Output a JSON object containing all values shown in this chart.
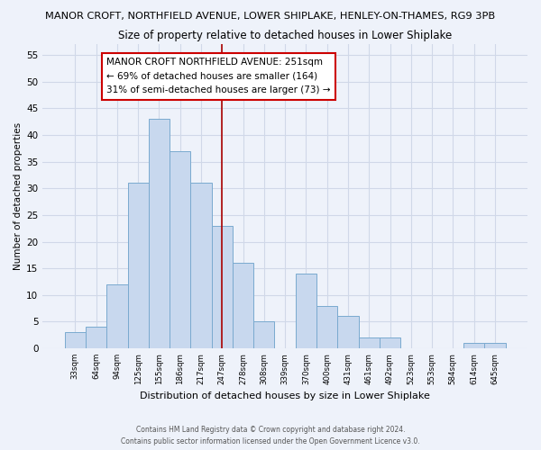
{
  "title_top": "MANOR CROFT, NORTHFIELD AVENUE, LOWER SHIPLAKE, HENLEY-ON-THAMES, RG9 3PB",
  "title_sub": "Size of property relative to detached houses in Lower Shiplake",
  "xlabel": "Distribution of detached houses by size in Lower Shiplake",
  "ylabel": "Number of detached properties",
  "categories": [
    "33sqm",
    "64sqm",
    "94sqm",
    "125sqm",
    "155sqm",
    "186sqm",
    "217sqm",
    "247sqm",
    "278sqm",
    "308sqm",
    "339sqm",
    "370sqm",
    "400sqm",
    "431sqm",
    "461sqm",
    "492sqm",
    "523sqm",
    "553sqm",
    "584sqm",
    "614sqm",
    "645sqm"
  ],
  "values": [
    3,
    4,
    12,
    31,
    43,
    37,
    31,
    23,
    16,
    5,
    0,
    14,
    8,
    6,
    2,
    2,
    0,
    0,
    0,
    1,
    1
  ],
  "bar_color": "#c8d8ee",
  "bar_edge_color": "#7aaacf",
  "vline_x_index": 7,
  "vline_color": "#aa0000",
  "ylim": [
    0,
    57
  ],
  "yticks": [
    0,
    5,
    10,
    15,
    20,
    25,
    30,
    35,
    40,
    45,
    50,
    55
  ],
  "annotation_line1": "MANOR CROFT NORTHFIELD AVENUE: 251sqm",
  "annotation_line2": "← 69% of detached houses are smaller (164)",
  "annotation_line3": "31% of semi-detached houses are larger (73) →",
  "footer1": "Contains HM Land Registry data © Crown copyright and database right 2024.",
  "footer2": "Contains public sector information licensed under the Open Government Licence v3.0.",
  "background_color": "#eef2fa",
  "grid_color": "#d0d8e8"
}
